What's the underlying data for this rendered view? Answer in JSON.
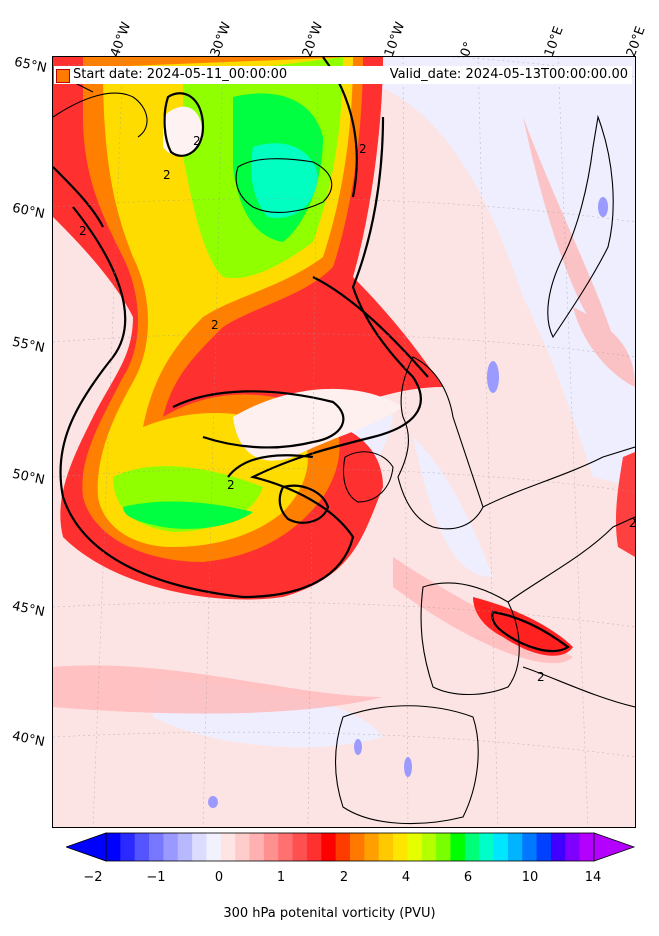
{
  "header": {
    "start_date": "Start date: 2024-05-11_00:00:00",
    "valid_date": "Valid_date: 2024-05-13T00:00:00.00"
  },
  "longitude_labels": [
    "40°W",
    "30°W",
    "20°W",
    "10°W",
    "0°",
    "10°E",
    "20°E"
  ],
  "latitude_labels": [
    "65°N",
    "60°N",
    "55°N",
    "50°N",
    "45°N",
    "40°N"
  ],
  "contour_labels": [
    "2",
    "2",
    "2",
    "2",
    "2",
    "2",
    "2",
    "2"
  ],
  "colorbar": {
    "title": "300 hPa potenital vorticity (PVU)",
    "tick_labels": [
      "−2",
      "−1",
      "0",
      "1",
      "2",
      "4",
      "6",
      "10",
      "14"
    ],
    "colors": [
      "#0000ff",
      "#2a2aff",
      "#5555ff",
      "#7777ff",
      "#9999ff",
      "#b8b8ff",
      "#dcdcff",
      "#f2f2ff",
      "#ffe4e4",
      "#ffcccc",
      "#ffb0b0",
      "#ff9090",
      "#ff7070",
      "#ff5050",
      "#ff3030",
      "#ff0000",
      "#ff3c00",
      "#ff7800",
      "#ffa000",
      "#ffc800",
      "#ffe600",
      "#e6ff00",
      "#b4ff00",
      "#78ff00",
      "#00ff00",
      "#00ff78",
      "#00ffc8",
      "#00e6ff",
      "#00b4ff",
      "#0078ff",
      "#0040ff",
      "#4000ff",
      "#8000ff",
      "#b400ff"
    ]
  },
  "colors": {
    "land_outline": "#000000",
    "pv2_contour": "#000000",
    "background_field": "#fde6e6"
  }
}
